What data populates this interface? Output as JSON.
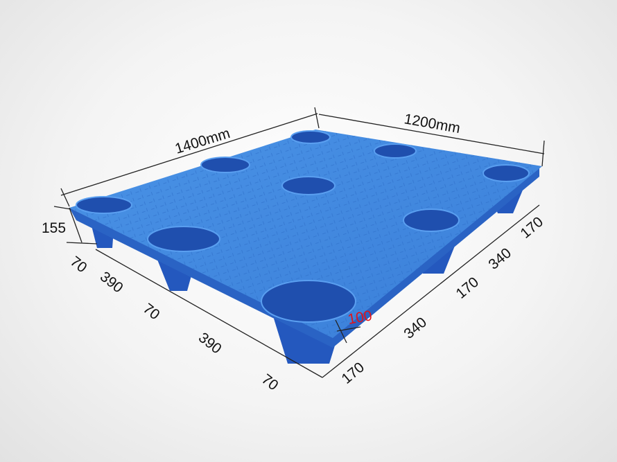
{
  "product": "plastic pallet",
  "colors": {
    "pallet_top": "#3f86de",
    "pallet_side": "#2a63c4",
    "hole": "#1f4fae",
    "dimension_text": "#111111",
    "highlight_text": "#e0141b"
  },
  "dimensions": {
    "length": "1400mm",
    "width": "1200mm",
    "height": "155",
    "foot_height": "100",
    "length_segments": [
      "70",
      "390",
      "70",
      "390",
      "70"
    ],
    "width_segments": [
      "170",
      "340",
      "170",
      "340",
      "170"
    ]
  }
}
